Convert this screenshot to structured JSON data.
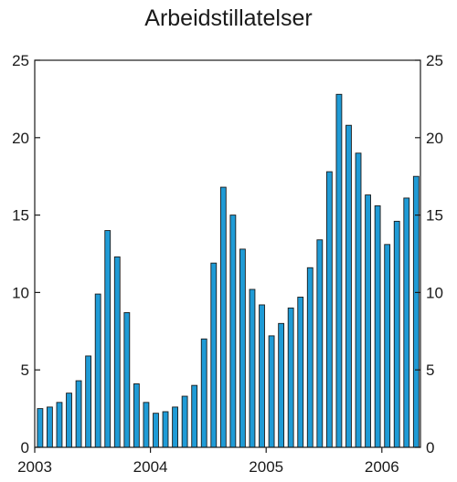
{
  "chart_data": {
    "type": "bar",
    "title": "Arbeidstillatelser",
    "xlabel": "",
    "ylabel": "",
    "ylim": [
      0,
      25
    ],
    "yticks": [
      0,
      5,
      10,
      15,
      20,
      25
    ],
    "x_tick_labels": [
      "2003",
      "2004",
      "2005",
      "2006"
    ],
    "grid": false,
    "bar_color": "#1f9bd6",
    "bar_edge_color": "#1a1a1a",
    "values": [
      2.5,
      2.6,
      2.9,
      3.5,
      4.3,
      5.9,
      9.9,
      14.0,
      12.3,
      8.7,
      4.1,
      2.9,
      2.2,
      2.3,
      2.6,
      3.3,
      4.0,
      7.0,
      11.9,
      16.8,
      15.0,
      12.8,
      10.2,
      9.2,
      7.2,
      8.0,
      9.0,
      9.7,
      11.6,
      13.4,
      17.8,
      22.8,
      20.8,
      19.0,
      16.3,
      15.6,
      13.1,
      14.6,
      16.1,
      17.5
    ]
  }
}
